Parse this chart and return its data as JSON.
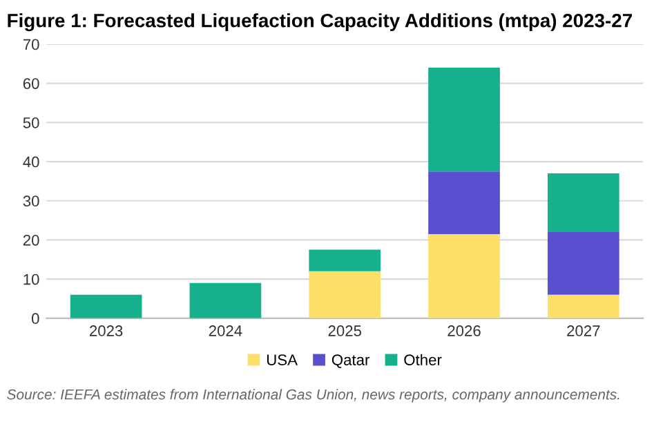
{
  "chart_data": {
    "type": "bar",
    "title": "Figure 1: Forecasted Liquefaction Capacity Additions (mtpa) 2023-27",
    "categories": [
      "2023",
      "2024",
      "2025",
      "2026",
      "2027"
    ],
    "stacked": true,
    "series": [
      {
        "name": "USA",
        "color": "#fde068",
        "values": [
          0,
          0,
          12,
          21.5,
          6
        ]
      },
      {
        "name": "Qatar",
        "color": "#5a4fcf",
        "values": [
          0,
          0,
          0,
          16,
          16
        ]
      },
      {
        "name": "Other",
        "color": "#17b08c",
        "values": [
          6,
          9,
          5.5,
          26.5,
          15
        ]
      }
    ],
    "ylim": [
      0,
      70
    ],
    "yticks": [
      0,
      10,
      20,
      30,
      40,
      50,
      60,
      70
    ],
    "grid": "y",
    "legend": "bottom",
    "annotations": [
      "Source: IEEFA estimates from International Gas Union, news reports, company announcements."
    ]
  }
}
